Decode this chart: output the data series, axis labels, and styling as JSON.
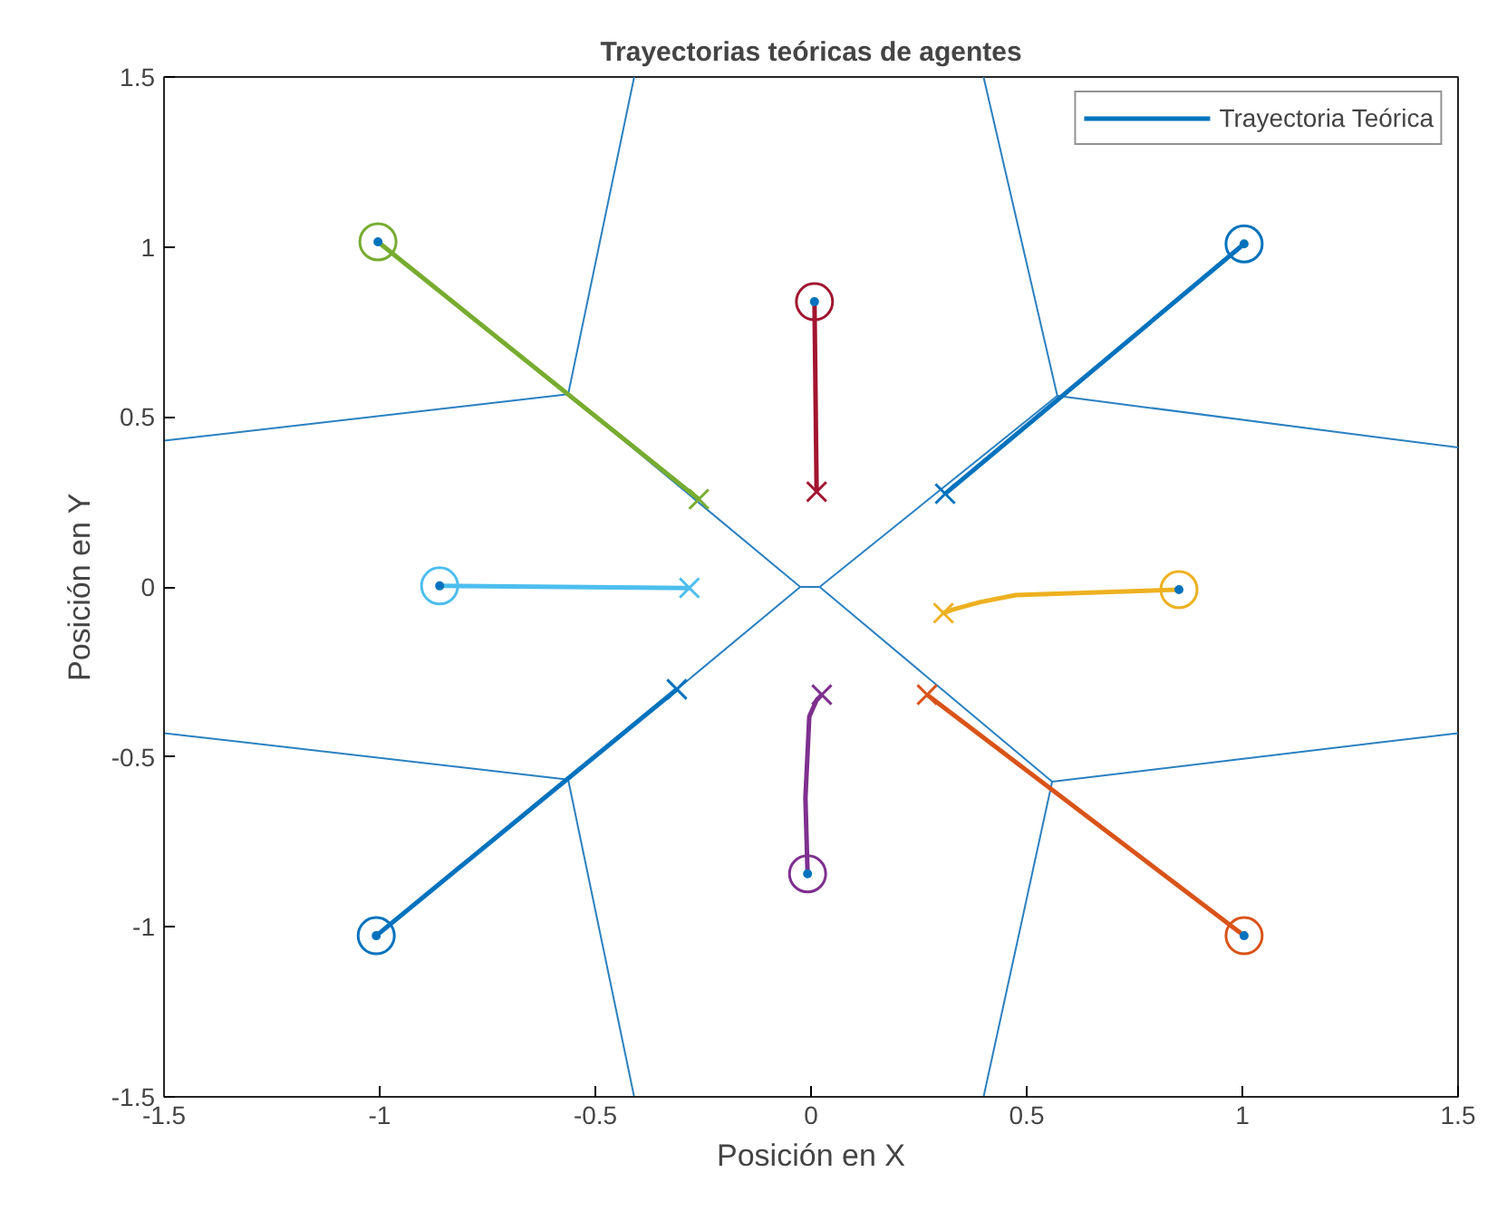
{
  "chart_data": {
    "type": "line",
    "title": "Trayectorias teóricas de agentes",
    "xlabel": "Posición en X",
    "ylabel": "Posición en Y",
    "xlim": [
      -1.5,
      1.5
    ],
    "ylim": [
      -1.5,
      1.5
    ],
    "xticks": [
      -1.5,
      -1,
      -0.5,
      0,
      0.5,
      1,
      1.5
    ],
    "yticks": [
      -1.5,
      -1,
      -0.5,
      0,
      0.5,
      1,
      1.5
    ],
    "grid": false,
    "legend": "top right",
    "series": [
      {
        "color": "#2a80c0",
        "x": [
          -0.025,
          0.02
        ],
        "values": [
          0,
          0
        ]
      },
      {
        "type": "line",
        "color": "#2a80c0",
        "x": [
          -0.563,
          -0.41
        ],
        "values": [
          0.567,
          1.5
        ]
      },
      {
        "type": "line",
        "color": "#2a80c0",
        "x": [
          -0.563,
          -1.5
        ],
        "values": [
          0.567,
          0.43
        ]
      },
      {
        "type": "line",
        "color": "#2a80c0",
        "x": [
          -0.563,
          -0.025
        ],
        "values": [
          0.567,
          0
        ]
      },
      {
        "type": "line",
        "color": "#2a80c0",
        "x": [
          0.571,
          0.4
        ],
        "values": [
          0.562,
          1.5
        ]
      },
      {
        "type": "line",
        "color": "#2a80c0",
        "x": [
          0.571,
          1.5
        ],
        "values": [
          0.562,
          0.41
        ]
      },
      {
        "type": "line",
        "color": "#2a80c0",
        "x": [
          0.571,
          0.02
        ],
        "values": [
          0.562,
          0
        ]
      },
      {
        "type": "line",
        "color": "#2a80c0",
        "x": [
          -0.563,
          -0.41
        ],
        "values": [
          -0.567,
          -1.5
        ]
      },
      {
        "type": "line",
        "color": "#2a80c0",
        "x": [
          -0.563,
          -1.5
        ],
        "values": [
          -0.567,
          -0.43
        ]
      },
      {
        "type": "line",
        "color": "#2a80c0",
        "x": [
          -0.563,
          -0.025
        ],
        "values": [
          -0.567,
          0
        ]
      },
      {
        "type": "line",
        "color": "#2a80c0",
        "x": [
          0.559,
          0.4
        ],
        "values": [
          -0.573,
          -1.5
        ]
      },
      {
        "type": "line",
        "color": "#2a80c0",
        "x": [
          0.559,
          1.5
        ],
        "values": [
          -0.573,
          -0.43
        ]
      },
      {
        "type": "line",
        "color": "#2a80c0",
        "x": [
          0.559,
          0.02
        ],
        "values": [
          -0.573,
          0
        ]
      },
      {
        "name": "Trayectoria Teórica",
        "color": "#0072bd",
        "x": [
          1.004,
          0.311
        ],
        "values": [
          1.009,
          0.274
        ]
      },
      {
        "color": "#d95319",
        "x": [
          1.004,
          0.269
        ],
        "values": [
          -1.026,
          -0.317
        ]
      },
      {
        "color": "#edb120",
        "x": [
          0.853,
          0.475,
          0.391,
          0.328,
          0.307
        ],
        "values": [
          -0.008,
          -0.024,
          -0.045,
          -0.067,
          -0.077
        ]
      },
      {
        "color": "#7e2f8e",
        "x": [
          -0.008,
          -0.013,
          -0.004,
          0.013,
          0.025
        ],
        "values": [
          -0.844,
          -0.621,
          -0.381,
          -0.333,
          -0.317
        ]
      },
      {
        "color": "#77ac30",
        "x": [
          -1.004,
          -0.26
        ],
        "values": [
          1.015,
          0.258
        ]
      },
      {
        "color": "#4dbeee",
        "x": [
          -0.861,
          -0.282
        ],
        "values": [
          0.003,
          -0.003
        ]
      },
      {
        "color": "#a2142f",
        "x": [
          0.008,
          0.013
        ],
        "values": [
          0.839,
          0.28
        ]
      },
      {
        "color": "#0072bd",
        "x": [
          -1.008,
          -0.311
        ],
        "values": [
          -1.026,
          -0.301
        ]
      },
      {
        "type": "scatter",
        "marker": "circle",
        "colors": [
          "#0072bd",
          "#d95319",
          "#edb120",
          "#7e2f8e",
          "#77ac30",
          "#4dbeee",
          "#a2142f",
          "#0072bd"
        ],
        "x": [
          1.004,
          1.004,
          0.853,
          -0.008,
          -1.004,
          -0.861,
          0.008,
          -1.008
        ],
        "values": [
          1.009,
          -1.026,
          -0.008,
          -0.844,
          1.015,
          0.003,
          0.839,
          -1.026
        ]
      },
      {
        "type": "scatter",
        "marker": "circle",
        "color": "#0072bd",
        "x": [
          1.004,
          1.004,
          0.853,
          -0.008,
          -1.004,
          -0.861,
          0.008,
          -1.008
        ],
        "values": [
          1.009,
          -1.026,
          -0.008,
          -0.844,
          1.015,
          0.003,
          0.839,
          -1.026
        ]
      },
      {
        "type": "scatter",
        "marker": "cross",
        "colors": [
          "#0072bd",
          "#d95319",
          "#edb120",
          "#7e2f8e",
          "#77ac30",
          "#4dbeee",
          "#a2142f",
          "#0072bd"
        ],
        "x": [
          0.311,
          0.269,
          0.307,
          0.025,
          -0.26,
          -0.282,
          0.013,
          -0.311
        ],
        "values": [
          0.274,
          -0.317,
          -0.077,
          -0.317,
          0.258,
          -0.003,
          0.28,
          -0.301
        ]
      }
    ]
  }
}
